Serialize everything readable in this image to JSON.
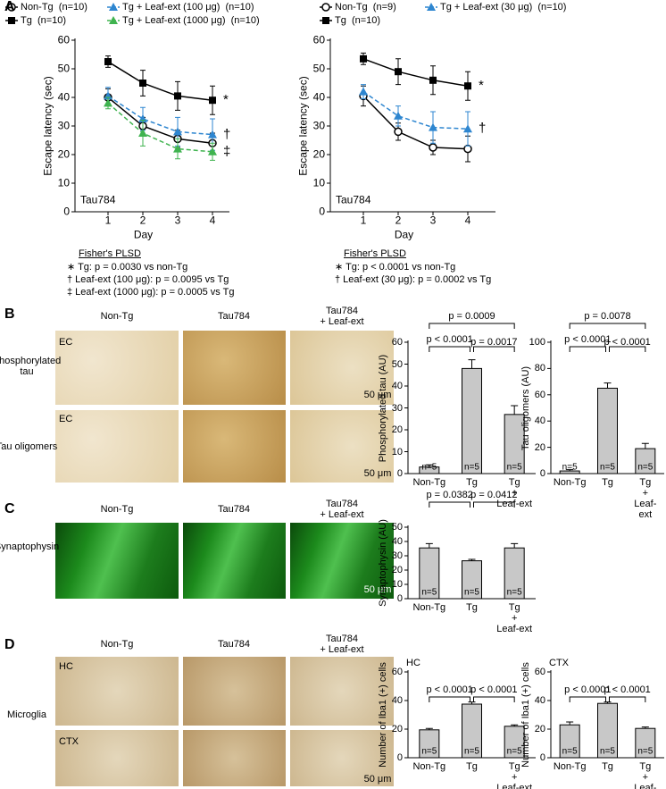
{
  "figure": {
    "panel_letters": [
      "A",
      "B",
      "C",
      "D"
    ],
    "B": {
      "columns": [
        "Non-Tg",
        "Tau784",
        "Tau784\n+ Leaf-ext"
      ],
      "rows": [
        "Phosphorylated\ntau",
        "Tau oligomers"
      ],
      "regions": [
        "EC",
        "EC"
      ],
      "scale_bars": [
        "50 μm",
        "50 μm"
      ]
    },
    "C": {
      "columns": [
        "Non-Tg",
        "Tau784",
        "Tau784\n+ Leaf-ext"
      ],
      "rows": [
        "Synaptophysin"
      ],
      "scale_bars": [
        "50 μm"
      ]
    },
    "D": {
      "columns": [
        "Non-Tg",
        "Tau784",
        "Tau784\n+ Leaf-ext"
      ],
      "rows": [
        "Microglia"
      ],
      "regions": [
        "HC",
        "CTX"
      ],
      "scale_bars": [
        "50 μm"
      ]
    }
  },
  "chart_data": [
    {
      "type": "line",
      "label": "Tau784",
      "x_label": "Day",
      "y_label": "Escape latency (sec)",
      "categories": [
        "1",
        "2",
        "3",
        "4"
      ],
      "ylim": [
        0,
        60
      ],
      "yticks": [
        0,
        10,
        20,
        30,
        40,
        50,
        60
      ],
      "series": [
        {
          "name": "Non-Tg  (n=10)",
          "color": "#000000",
          "marker": "circle",
          "dashed": false,
          "values": [
            40,
            30,
            25.5,
            24
          ],
          "errors": [
            3,
            3,
            3,
            3.5
          ]
        },
        {
          "name": "Tg  (n=10)",
          "color": "#000000",
          "marker": "square",
          "dashed": false,
          "values": [
            52.5,
            45,
            40.5,
            39
          ],
          "errors": [
            2,
            4.5,
            5,
            5
          ],
          "annotation": "*"
        },
        {
          "name": "Tg + Leaf-ext (100 μg)  (n=10)",
          "color": "#2e86d0",
          "marker": "triangle",
          "dashed": true,
          "values": [
            40.5,
            32.5,
            28,
            27
          ],
          "errors": [
            3,
            4,
            5,
            5.5
          ],
          "annotation": "†"
        },
        {
          "name": "Tg + Leaf-ext (1000 μg)  (n=10)",
          "color": "#3fb34f",
          "marker": "triangle",
          "dashed": true,
          "values": [
            38,
            27.5,
            22,
            21
          ],
          "errors": [
            2,
            4.5,
            3.5,
            3
          ],
          "annotation": "‡"
        }
      ],
      "stats_title": "Fisher's PLSD",
      "stats": [
        "∗ Tg: p = 0.0030 vs non-Tg",
        "† Leaf-ext (100 μg): p = 0.0095 vs Tg",
        "‡ Leaf-ext (1000 μg): p = 0.0005 vs Tg"
      ]
    },
    {
      "type": "line",
      "label": "Tau784",
      "x_label": "Day",
      "y_label": "Escape latency (sec)",
      "categories": [
        "1",
        "2",
        "3",
        "4"
      ],
      "ylim": [
        0,
        60
      ],
      "yticks": [
        0,
        10,
        20,
        30,
        40,
        50,
        60
      ],
      "series": [
        {
          "name": "Non-Tg  (n=9)",
          "color": "#000000",
          "marker": "circle",
          "dashed": false,
          "values": [
            40.5,
            28,
            22.5,
            22
          ],
          "errors": [
            3.5,
            3,
            2.5,
            4.5
          ]
        },
        {
          "name": "Tg  (n=10)",
          "color": "#000000",
          "marker": "square",
          "dashed": false,
          "values": [
            53.5,
            49,
            46,
            44
          ],
          "errors": [
            2,
            4.5,
            5,
            5
          ],
          "annotation": "*"
        },
        {
          "name": "Tg + Leaf-ext (30 μg)  (n=10)",
          "color": "#2e86d0",
          "marker": "triangle",
          "dashed": true,
          "values": [
            42,
            33.5,
            29.5,
            29
          ],
          "errors": [
            2.5,
            3.5,
            5.5,
            6
          ],
          "annotation": "†"
        }
      ],
      "stats_title": "Fisher's PLSD",
      "stats": [
        "∗ Tg: p < 0.0001 vs non-Tg",
        "† Leaf-ext (30 μg): p = 0.0002 vs Tg"
      ]
    },
    {
      "type": "bar",
      "y_label": "Phosphorylated tau (AU)",
      "categories": [
        "Non-Tg",
        "Tg",
        "Tg\n+\nLeaf-ext"
      ],
      "values": [
        3,
        48,
        27
      ],
      "errors": [
        1,
        4,
        4
      ],
      "n_labels": [
        "n=5",
        "n=5",
        "n=5"
      ],
      "color": "#c8c8c8",
      "ylim": [
        0,
        60
      ],
      "yticks": [
        0,
        10,
        20,
        30,
        40,
        50,
        60
      ],
      "comparisons": [
        "p < 0.0001",
        "p = 0.0017",
        "p = 0.0009"
      ]
    },
    {
      "type": "bar",
      "y_label": "Tau oligomers (AU)",
      "categories": [
        "Non-Tg",
        "Tg",
        "Tg\n+\nLeaf-ext"
      ],
      "values": [
        2,
        65,
        19
      ],
      "errors": [
        1,
        4,
        4
      ],
      "n_labels": [
        "n=5",
        "n=5",
        "n=5"
      ],
      "color": "#c8c8c8",
      "ylim": [
        0,
        100
      ],
      "yticks": [
        0,
        20,
        40,
        60,
        80,
        100
      ],
      "comparisons": [
        "p < 0.0001",
        "p < 0.0001",
        "p = 0.0078"
      ]
    },
    {
      "type": "bar",
      "y_label": "Synaptophysin (AU)",
      "categories": [
        "Non-Tg",
        "Tg",
        "Tg\n+\nLeaf-ext"
      ],
      "values": [
        35.5,
        26.5,
        35.5
      ],
      "errors": [
        3,
        1,
        3
      ],
      "n_labels": [
        "n=5",
        "n=5",
        "n=5"
      ],
      "color": "#c8c8c8",
      "ylim": [
        0,
        50
      ],
      "yticks": [
        0,
        10,
        20,
        30,
        40,
        50
      ],
      "comparisons": [
        "p = 0.0382",
        "p = 0.0412"
      ]
    },
    {
      "type": "bar",
      "title": "HC",
      "y_label": "Number of Iba1 (+) cells",
      "categories": [
        "Non-Tg",
        "Tg",
        "Tg\n+\nLeaf-ext"
      ],
      "values": [
        19.5,
        37.5,
        22
      ],
      "errors": [
        1,
        1.5,
        1
      ],
      "n_labels": [
        "n=5",
        "n=5",
        "n=5"
      ],
      "color": "#c8c8c8",
      "ylim": [
        0,
        60
      ],
      "yticks": [
        0,
        20,
        40,
        60
      ],
      "comparisons": [
        "p < 0.0001",
        "p < 0.0001"
      ]
    },
    {
      "type": "bar",
      "title": "CTX",
      "y_label": "Number of Iba1 (+) cells",
      "categories": [
        "Non-Tg",
        "Tg",
        "Tg\n+\nLeaf-ext"
      ],
      "values": [
        23,
        38,
        20.5
      ],
      "errors": [
        2,
        1,
        1
      ],
      "n_labels": [
        "n=5",
        "n=5",
        "n=5"
      ],
      "color": "#c8c8c8",
      "ylim": [
        0,
        60
      ],
      "yticks": [
        0,
        20,
        40,
        60
      ],
      "comparisons": [
        "p < 0.0001",
        "p < 0.0001"
      ]
    }
  ]
}
